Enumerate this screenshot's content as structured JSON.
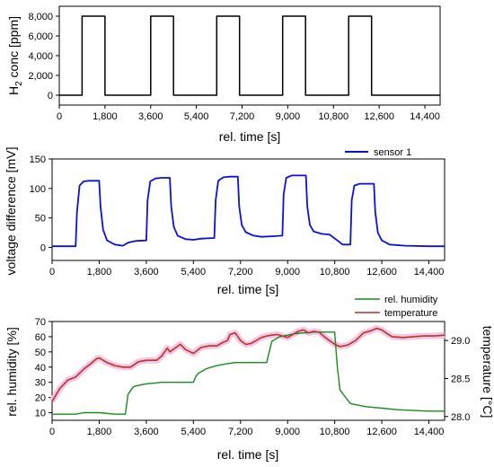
{
  "colors": {
    "h2": "#000000",
    "sensor": "#0a12d4",
    "humidity": "#1c8a1c",
    "temperature": "#b5352a",
    "temp_glow": "#f4c6e6"
  },
  "chart_data": [
    {
      "type": "line",
      "xlabel": "rel. time [s]",
      "ylabel_main": "H",
      "ylabel_sub": "2",
      "ylabel_rest": " conc [ppm]",
      "xlim": [
        0,
        15000
      ],
      "ylim": [
        -1000,
        9000
      ],
      "xticks": [
        "0",
        "1,800",
        "3,600",
        "5,400",
        "7,200",
        "9,000",
        "10,800",
        "12,600",
        "14,400"
      ],
      "yticks": [
        "0",
        "2,000",
        "4,000",
        "6,000",
        "8,000"
      ],
      "grid": false,
      "series": [
        {
          "x": [
            0,
            900,
            900,
            1800,
            1800,
            3600,
            3600,
            4500,
            4500,
            6200,
            6200,
            7100,
            7100,
            8800,
            8800,
            9700,
            9700,
            11400,
            11400,
            12300,
            12300,
            15000
          ],
          "y": [
            0,
            0,
            8000,
            8000,
            0,
            0,
            8000,
            8000,
            0,
            0,
            8000,
            8000,
            0,
            0,
            8000,
            8000,
            0,
            0,
            8000,
            8000,
            0,
            0
          ]
        }
      ]
    },
    {
      "type": "line",
      "xlabel": "rel. time [s]",
      "ylabel": "voltage difference [mV]",
      "xlim": [
        0,
        15000
      ],
      "ylim": [
        -22,
        150
      ],
      "xticks": [
        "0",
        "1,800",
        "3,600",
        "5,400",
        "7,200",
        "9,000",
        "10,800",
        "12,600",
        "14,400"
      ],
      "yticks": [
        "0",
        "50",
        "100",
        "150"
      ],
      "legend_position": "top-right",
      "grid": false,
      "series": [
        {
          "name": "sensor 1",
          "x": [
            0,
            900,
            950,
            1050,
            1200,
            1400,
            1800,
            1850,
            1950,
            2100,
            2400,
            2700,
            2900,
            3200,
            3600,
            3650,
            3750,
            3950,
            4200,
            4500,
            4550,
            4650,
            4800,
            5100,
            5400,
            5700,
            6200,
            6250,
            6350,
            6550,
            6800,
            7100,
            7150,
            7250,
            7400,
            7700,
            8000,
            8400,
            8800,
            8850,
            8950,
            9150,
            9400,
            9700,
            9750,
            9850,
            10000,
            10300,
            10600,
            10900,
            11100,
            11400,
            11450,
            11550,
            11750,
            12000,
            12300,
            12350,
            12450,
            12600,
            12900,
            13500,
            14400,
            15000
          ],
          "y": [
            2,
            2,
            60,
            105,
            112,
            113,
            113,
            70,
            30,
            12,
            5,
            3,
            8,
            11,
            12,
            80,
            112,
            117,
            118,
            118,
            70,
            35,
            20,
            14,
            13,
            15,
            16,
            80,
            113,
            119,
            120,
            120,
            70,
            38,
            26,
            20,
            18,
            19,
            20,
            90,
            118,
            122,
            122,
            122,
            70,
            38,
            27,
            23,
            22,
            12,
            5,
            5,
            80,
            105,
            108,
            108,
            108,
            60,
            25,
            12,
            5,
            3,
            2,
            2
          ]
        }
      ]
    },
    {
      "type": "line",
      "xlabel": "rel. time [s]",
      "ylabel_left": "rel. humidity [%]",
      "ylabel_right": "temperature [°C]",
      "xlim": [
        0,
        15000
      ],
      "ylim_left": [
        5,
        70
      ],
      "ylim_right": [
        27.95,
        29.25
      ],
      "xticks": [
        "0",
        "1,800",
        "3,600",
        "5,400",
        "7,200",
        "9,000",
        "10,800",
        "12,600",
        "14,400"
      ],
      "yticks_left": [
        "10",
        "20",
        "30",
        "40",
        "50",
        "60",
        "70"
      ],
      "yticks_right": [
        "28.0",
        "28.5",
        "29.0"
      ],
      "legend_position": "top-right",
      "grid": false,
      "series": [
        {
          "name": "rel. humidity",
          "axis": "left",
          "x": [
            0,
            600,
            900,
            1200,
            1800,
            2400,
            2700,
            2800,
            2900,
            3100,
            3300,
            3600,
            4200,
            4500,
            5400,
            5500,
            5600,
            5900,
            6300,
            6600,
            7000,
            7500,
            8200,
            8300,
            8400,
            8700,
            9000,
            9300,
            10000,
            10700,
            10800,
            10900,
            11000,
            11400,
            12000,
            12600,
            13200,
            14400,
            15000
          ],
          "y": [
            9,
            9,
            9,
            10,
            10,
            9,
            9,
            9,
            22,
            27,
            28,
            29,
            30,
            30,
            30,
            34,
            36,
            39,
            41,
            42,
            43,
            43,
            43,
            50,
            57,
            60,
            61,
            62,
            63,
            63,
            63,
            40,
            25,
            16,
            14,
            13,
            12,
            11,
            11
          ]
        },
        {
          "name": "temperature",
          "axis": "right",
          "x": [
            0,
            300,
            600,
            900,
            1200,
            1500,
            1700,
            1800,
            2100,
            2400,
            2700,
            3000,
            3300,
            3600,
            4000,
            4200,
            4400,
            4500,
            4700,
            4900,
            5100,
            5400,
            5700,
            6000,
            6300,
            6500,
            6700,
            6800,
            7000,
            7200,
            7400,
            7600,
            7800,
            8000,
            8200,
            8400,
            8600,
            8800,
            9000,
            9200,
            9400,
            9600,
            9800,
            10000,
            10200,
            10400,
            10600,
            10800,
            11000,
            11300,
            11600,
            11900,
            12200,
            12400,
            12600,
            12800,
            13000,
            13400,
            13800,
            14200,
            14600,
            15000
          ],
          "y": [
            28.2,
            28.37,
            28.48,
            28.52,
            28.62,
            28.7,
            28.76,
            28.77,
            28.71,
            28.67,
            28.65,
            28.65,
            28.72,
            28.74,
            28.74,
            28.8,
            28.9,
            28.85,
            28.9,
            28.95,
            28.88,
            28.83,
            28.91,
            28.93,
            28.93,
            28.97,
            29.0,
            29.08,
            29.1,
            29.0,
            28.95,
            28.96,
            29.0,
            29.04,
            29.06,
            29.07,
            29.08,
            29.06,
            29.04,
            29.08,
            29.12,
            29.14,
            29.1,
            29.12,
            29.11,
            29.05,
            29.0,
            28.95,
            28.92,
            28.94,
            29.0,
            29.1,
            29.13,
            29.16,
            29.14,
            29.09,
            29.05,
            29.04,
            29.05,
            29.06,
            29.06,
            29.07
          ]
        }
      ]
    }
  ]
}
